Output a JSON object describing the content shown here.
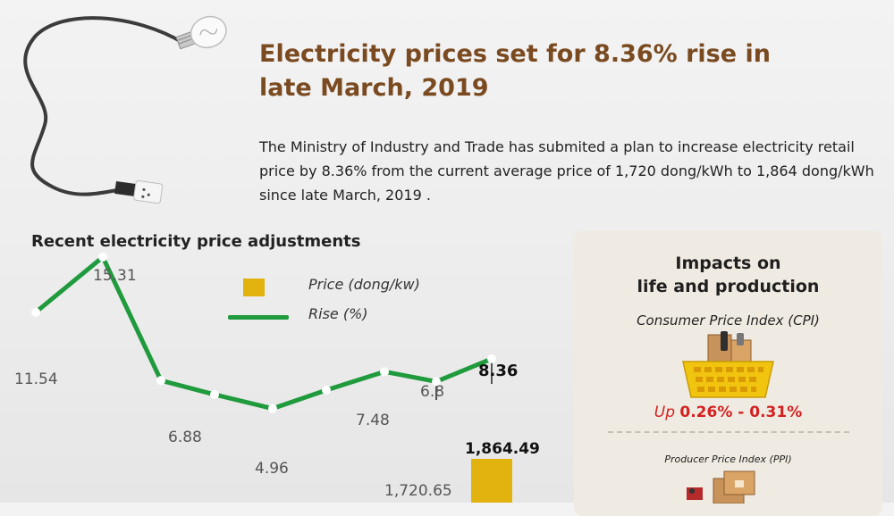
{
  "header": {
    "title": "Electricity prices set for 8.36% rise in late March, 2019",
    "intro": "The Ministry of Industry and Trade has submited a plan to increase electricity retail price by 8.36% from the current average price of 1,720 dong/kWh to 1,864 dong/kWh since late March, 2019 ."
  },
  "chart_heading": "Recent electricity price adjustments",
  "legend": {
    "price": "Price (dong/kw)",
    "rise": "Rise (%)"
  },
  "chart_data": {
    "type": "line",
    "title": "Recent electricity price adjustments",
    "series": [
      {
        "name": "Rise (%)",
        "values": [
          11.54,
          15.31,
          6.88,
          null,
          4.96,
          null,
          7.48,
          6.8,
          8.36
        ],
        "labels": [
          "11.54",
          "15.31",
          "6.88",
          "",
          "4.96",
          "",
          "7.48",
          "6.8",
          "8.36"
        ]
      },
      {
        "name": "Price (dong/kw)",
        "values": [
          1720.65,
          1864.49
        ],
        "labels": [
          "1,720.65",
          "1,864.49"
        ]
      }
    ],
    "colors": {
      "line": "#1f9a3c",
      "bar": "#e2b20f"
    },
    "legend_position": "top-center"
  },
  "impacts": {
    "title_line1": "Impacts on",
    "title_line2": "life and production",
    "cpi_label": "Consumer Price Index  (CPI)",
    "cpi_up": "Up",
    "cpi_range": "0.26% - 0.31%",
    "ppi_label": "Producer Price Index (PPI)",
    "accent": "#d32121",
    "panel_bg": "#f0ebe2"
  },
  "icons": [
    "light-bulb-icon",
    "shopping-basket-icon",
    "cardboard-boxes-icon"
  ]
}
